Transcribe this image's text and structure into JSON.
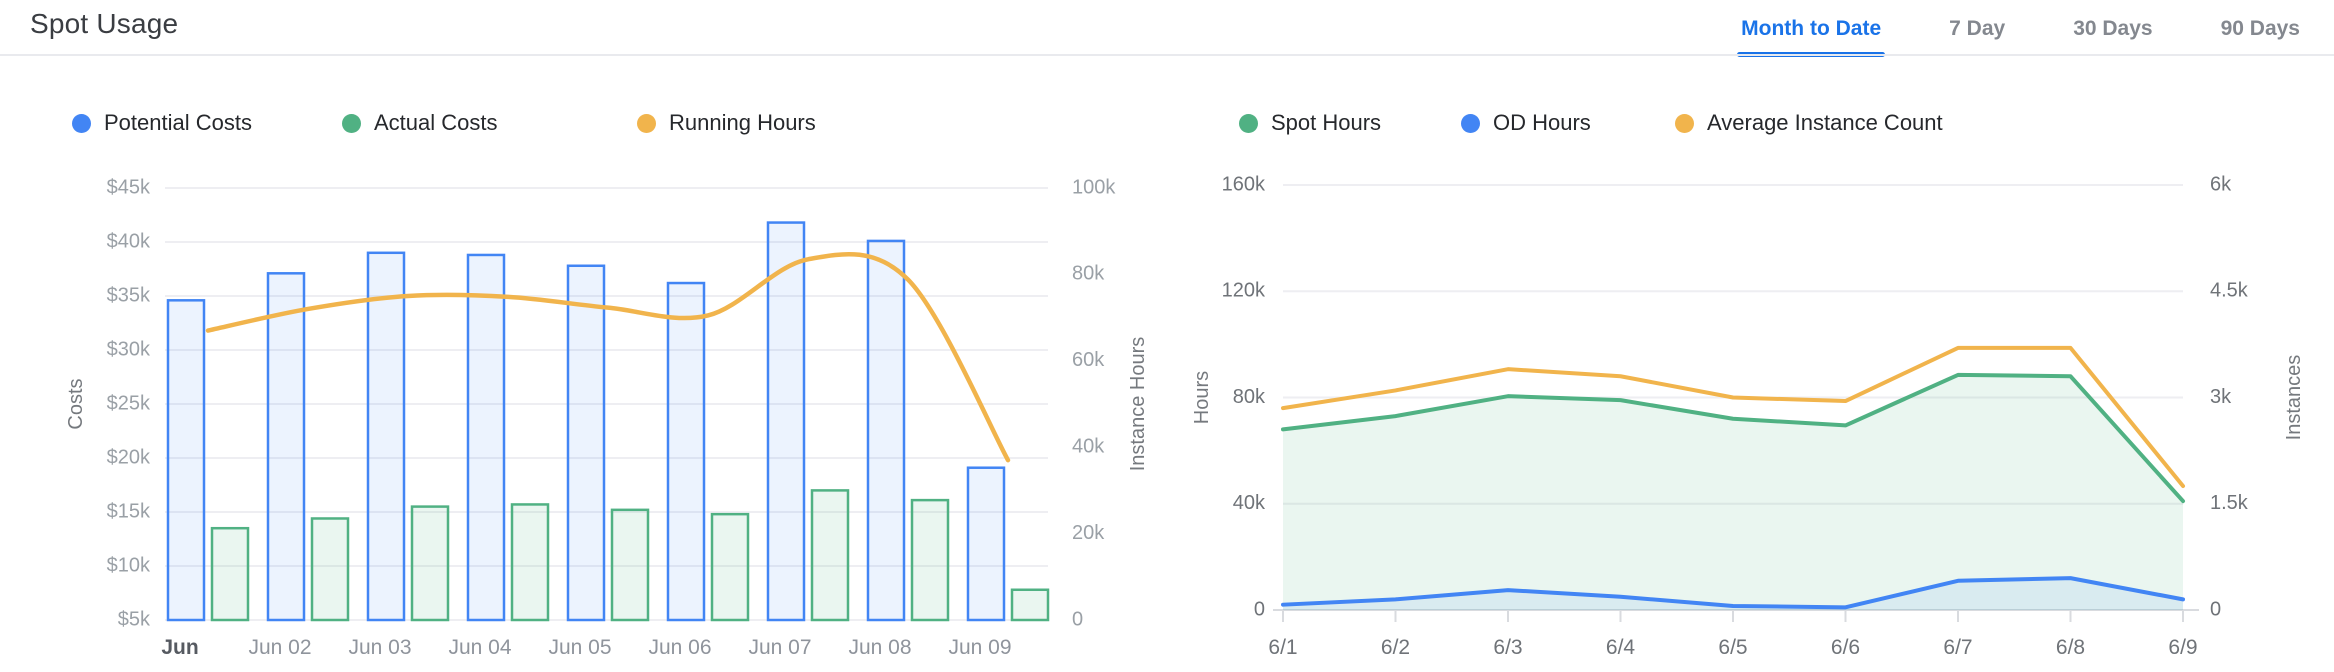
{
  "header": {
    "title": "Spot Usage",
    "tabs": [
      {
        "label": "Month to Date",
        "active": true
      },
      {
        "label": "7 Day",
        "active": false
      },
      {
        "label": "30 Days",
        "active": false
      },
      {
        "label": "90 Days",
        "active": false
      }
    ]
  },
  "colors": {
    "blue": "#4285f4",
    "green": "#50b183",
    "orange": "#f1b44c",
    "blue_fill": "rgba(66,133,244,0.10)",
    "green_fill": "rgba(80,177,131,0.12)",
    "grid": "#eeeef2",
    "axis_line": "#d9dbdf",
    "tick_light": "#9aa0a6",
    "tick_medium": "#6f7378",
    "xlabel": "#8f949c",
    "xlabel_dark": "#565a61",
    "active_tab": "#1a73e8",
    "inactive_tab": "#84888f"
  },
  "chart_data": [
    {
      "id": "costs-chart",
      "type": "bar",
      "title": "",
      "categories": [
        "Jun",
        "Jun 02",
        "Jun 03",
        "Jun 04",
        "Jun 05",
        "Jun 06",
        "Jun 07",
        "Jun 08",
        "Jun 09"
      ],
      "series": [
        {
          "name": "Potential Costs",
          "type": "bar",
          "axis": "left",
          "color": "blue",
          "values": [
            34600,
            37100,
            39000,
            38800,
            37800,
            36200,
            41800,
            40100,
            19100
          ]
        },
        {
          "name": "Actual Costs",
          "type": "bar",
          "axis": "left",
          "color": "green",
          "values": [
            13500,
            14400,
            15500,
            15700,
            15200,
            14800,
            17000,
            16100,
            7800
          ]
        },
        {
          "name": "Running Hours",
          "type": "line",
          "axis": "right",
          "color": "orange",
          "values": [
            67000,
            72000,
            75000,
            74800,
            72300,
            70500,
            83500,
            78800,
            37000
          ]
        }
      ],
      "left_axis": {
        "label": "Costs",
        "min": 5000,
        "max": 45000,
        "ticks": [
          {
            "label": "$45k",
            "value": 45000
          },
          {
            "label": "$40k",
            "value": 40000
          },
          {
            "label": "$35k",
            "value": 35000
          },
          {
            "label": "$30k",
            "value": 30000
          },
          {
            "label": "$25k",
            "value": 25000
          },
          {
            "label": "$20k",
            "value": 20000
          },
          {
            "label": "$15k",
            "value": 15000
          },
          {
            "label": "$10k",
            "value": 10000
          },
          {
            "label": "$5k",
            "value": 5000
          }
        ]
      },
      "right_axis": {
        "label": "Instance Hours",
        "min": 0,
        "max": 100000,
        "ticks": [
          {
            "label": "100k",
            "value": 100000
          },
          {
            "label": "80k",
            "value": 80000
          },
          {
            "label": "60k",
            "value": 60000
          },
          {
            "label": "40k",
            "value": 40000
          },
          {
            "label": "20k",
            "value": 20000
          },
          {
            "label": "0",
            "value": 0
          }
        ]
      },
      "grid": true,
      "legend_position": "top"
    },
    {
      "id": "usage-chart",
      "type": "area",
      "title": "",
      "categories": [
        "6/1",
        "6/2",
        "6/3",
        "6/4",
        "6/5",
        "6/6",
        "6/7",
        "6/8",
        "6/9"
      ],
      "series": [
        {
          "name": "Spot Hours",
          "type": "area",
          "axis": "left",
          "color": "green",
          "values": [
            68000,
            73000,
            80500,
            79000,
            72000,
            69500,
            88500,
            88000,
            41000
          ]
        },
        {
          "name": "OD Hours",
          "type": "area",
          "axis": "left",
          "color": "blue",
          "values": [
            2000,
            4000,
            7500,
            5000,
            1500,
            1000,
            11000,
            12000,
            4000
          ]
        },
        {
          "name": "Average Instance Count",
          "type": "line",
          "axis": "right",
          "color": "orange",
          "values": [
            2850,
            3100,
            3400,
            3300,
            3000,
            2950,
            3700,
            3700,
            1750
          ]
        }
      ],
      "left_axis": {
        "label": "Hours",
        "min": 0,
        "max": 160000,
        "ticks": [
          {
            "label": "160k",
            "value": 160000
          },
          {
            "label": "120k",
            "value": 120000
          },
          {
            "label": "80k",
            "value": 80000
          },
          {
            "label": "40k",
            "value": 40000
          },
          {
            "label": "0",
            "value": 0
          }
        ]
      },
      "right_axis": {
        "label": "Instances",
        "min": 0,
        "max": 6000,
        "ticks": [
          {
            "label": "6k",
            "value": 6000
          },
          {
            "label": "4.5k",
            "value": 4500
          },
          {
            "label": "3k",
            "value": 3000
          },
          {
            "label": "1.5k",
            "value": 1500
          },
          {
            "label": "0",
            "value": 0
          }
        ]
      },
      "grid": true,
      "legend_position": "top"
    }
  ]
}
